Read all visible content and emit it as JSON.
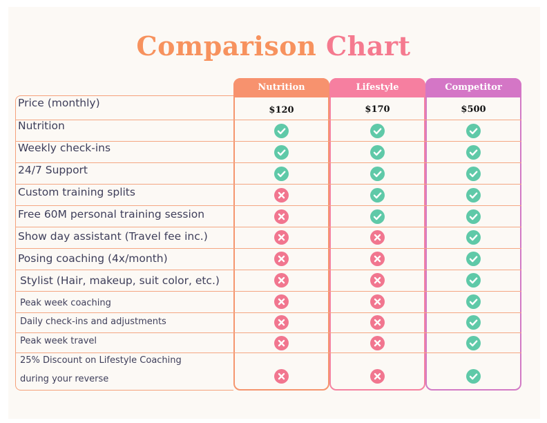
{
  "title": {
    "word1": "Comparison",
    "word2": "Chart"
  },
  "columns": [
    {
      "name": "Nutrition",
      "price": "$120"
    },
    {
      "name": "Lifestyle",
      "price": "$170"
    },
    {
      "name": "Competitor",
      "price": "$500"
    }
  ],
  "rows": [
    {
      "label": "Price (monthly)"
    },
    {
      "label": "Nutrition",
      "values": [
        true,
        true,
        true
      ]
    },
    {
      "label": "Weekly check-ins",
      "values": [
        true,
        true,
        true
      ]
    },
    {
      "label": "24/7 Support",
      "values": [
        true,
        true,
        true
      ]
    },
    {
      "label": "Custom training splits",
      "values": [
        false,
        true,
        true
      ]
    },
    {
      "label": "Free 60M personal training session",
      "values": [
        false,
        true,
        true
      ]
    },
    {
      "label": "Show day assistant (Travel fee inc.)",
      "values": [
        false,
        false,
        true
      ]
    },
    {
      "label": "Posing coaching (4x/month)",
      "values": [
        false,
        false,
        true
      ]
    },
    {
      "label": "Stylist (Hair, makeup, suit color, etc.)",
      "values": [
        false,
        false,
        true
      ]
    },
    {
      "label": "Peak week coaching",
      "values": [
        false,
        false,
        true
      ]
    },
    {
      "label": "Daily check-ins and adjustments",
      "values": [
        false,
        false,
        true
      ]
    },
    {
      "label": "Peak week travel",
      "values": [
        false,
        false,
        true
      ]
    },
    {
      "label": "25% Discount on Lifestyle Coaching",
      "label2": "during your reverse",
      "values": [
        false,
        false,
        true
      ]
    }
  ],
  "colors": {
    "check": "#5fc9a8",
    "cross": "#f1768f",
    "title1": "#f7925e",
    "title2": "#f57a8f"
  }
}
